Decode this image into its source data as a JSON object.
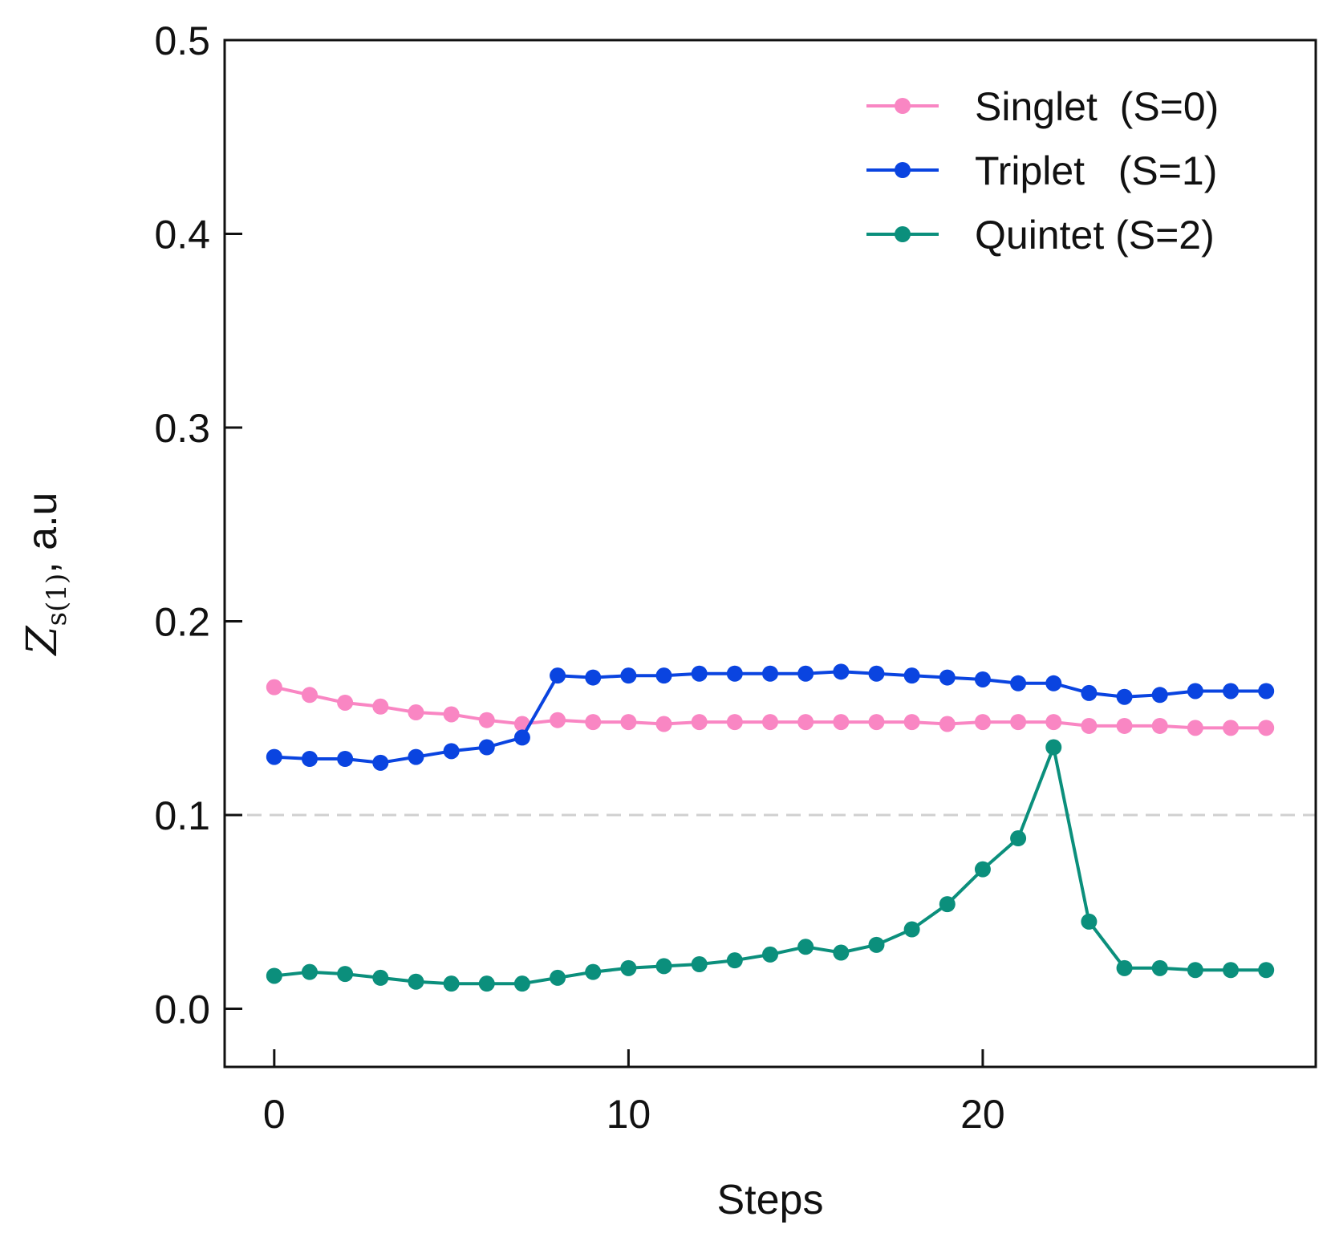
{
  "chart_data": {
    "type": "line",
    "title": "",
    "xlabel": "Steps",
    "ylabel": {
      "symbol": "Z",
      "subscript": "s(1)",
      "suffix": ", a.u"
    },
    "xlim": [
      -1.4,
      29.4
    ],
    "ylim": [
      -0.03,
      0.5
    ],
    "xticks": [
      0,
      10,
      20
    ],
    "xtick_labels": [
      "0",
      "10",
      "20"
    ],
    "yticks": [
      0.0,
      0.1,
      0.2,
      0.3,
      0.4,
      0.5
    ],
    "ytick_labels": [
      "0.0",
      "0.1",
      "0.2",
      "0.3",
      "0.4",
      "0.5"
    ],
    "reference_line": {
      "y": 0.1,
      "style": "dashed",
      "color": "#d0d0d0"
    },
    "legend_position": "top-right",
    "x": [
      0,
      1,
      2,
      3,
      4,
      5,
      6,
      7,
      8,
      9,
      10,
      11,
      12,
      13,
      14,
      15,
      16,
      17,
      18,
      19,
      20,
      21,
      22,
      23,
      24,
      25,
      26,
      27,
      28
    ],
    "series": [
      {
        "name": "Singlet  (S=0)",
        "color": "#f986c3",
        "values": [
          0.166,
          0.162,
          0.158,
          0.156,
          0.153,
          0.152,
          0.149,
          0.147,
          0.149,
          0.148,
          0.148,
          0.147,
          0.148,
          0.148,
          0.148,
          0.148,
          0.148,
          0.148,
          0.148,
          0.147,
          0.148,
          0.148,
          0.148,
          0.146,
          0.146,
          0.146,
          0.145,
          0.145,
          0.145
        ]
      },
      {
        "name": "Triplet   (S=1)",
        "color": "#0a44e0",
        "values": [
          0.13,
          0.129,
          0.129,
          0.127,
          0.13,
          0.133,
          0.135,
          0.14,
          0.172,
          0.171,
          0.172,
          0.172,
          0.173,
          0.173,
          0.173,
          0.173,
          0.174,
          0.173,
          0.172,
          0.171,
          0.17,
          0.168,
          0.168,
          0.163,
          0.161,
          0.162,
          0.164,
          0.164,
          0.164
        ]
      },
      {
        "name": "Quintet (S=2)",
        "color": "#0b8f7c",
        "values": [
          0.017,
          0.019,
          0.018,
          0.016,
          0.014,
          0.013,
          0.013,
          0.013,
          0.016,
          0.019,
          0.021,
          0.022,
          0.023,
          0.025,
          0.028,
          0.032,
          0.029,
          0.033,
          0.041,
          0.054,
          0.072,
          0.088,
          0.135,
          0.045,
          0.021,
          0.021,
          0.02,
          0.02,
          0.02
        ]
      }
    ]
  }
}
